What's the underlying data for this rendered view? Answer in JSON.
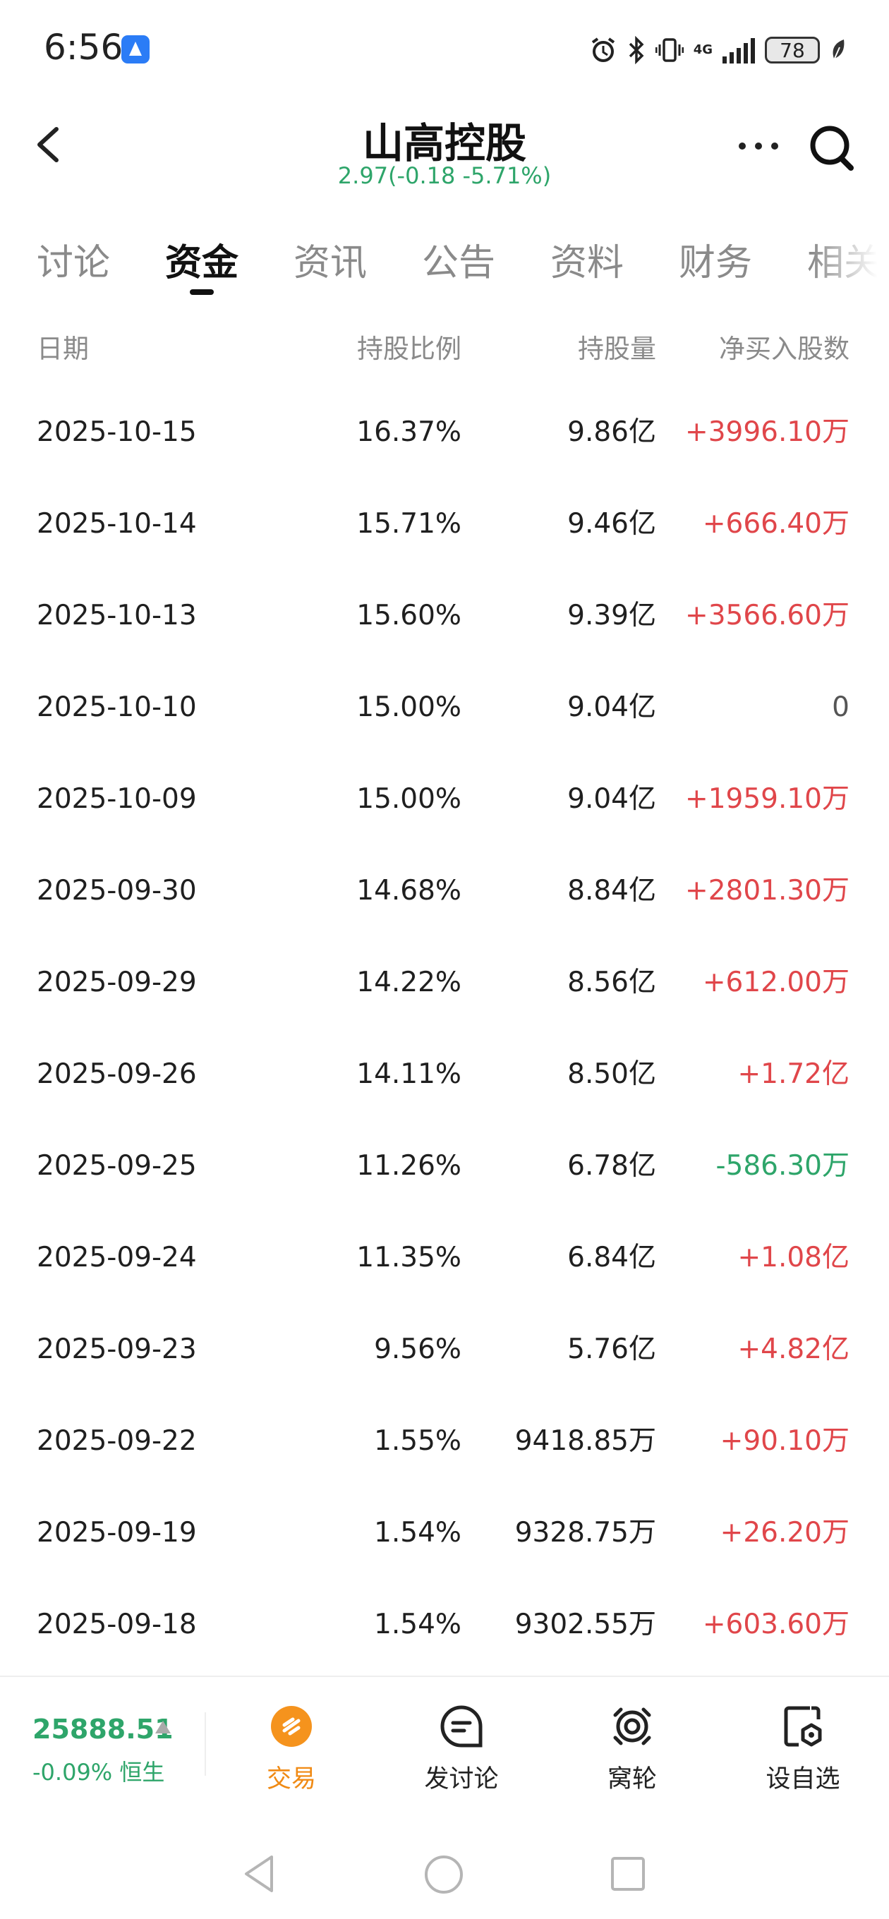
{
  "status_bar": {
    "time": "6:56",
    "network": "4G",
    "battery": "78",
    "icons": [
      "app-notification-icon",
      "alarm-icon",
      "bluetooth-icon",
      "vibrate-icon",
      "signal-icon",
      "battery-icon",
      "leaf-icon"
    ]
  },
  "header": {
    "title": "山高控股",
    "quote": "2.97(-0.18 -5.71%)",
    "quote_color": "#2ea56a"
  },
  "tabs": [
    {
      "label": "讨论",
      "active": false
    },
    {
      "label": "资金",
      "active": true
    },
    {
      "label": "资讯",
      "active": false
    },
    {
      "label": "公告",
      "active": false
    },
    {
      "label": "资料",
      "active": false
    },
    {
      "label": "财务",
      "active": false
    },
    {
      "label": "相关",
      "active": false
    }
  ],
  "table": {
    "headers": [
      "日期",
      "持股比例",
      "持股量",
      "净买入股数"
    ],
    "rows": [
      {
        "date": "2025-10-15",
        "ratio": "16.37%",
        "shares": "9.86亿",
        "net": "+3996.10万",
        "dir": "pos"
      },
      {
        "date": "2025-10-14",
        "ratio": "15.71%",
        "shares": "9.46亿",
        "net": "+666.40万",
        "dir": "pos"
      },
      {
        "date": "2025-10-13",
        "ratio": "15.60%",
        "shares": "9.39亿",
        "net": "+3566.60万",
        "dir": "pos"
      },
      {
        "date": "2025-10-10",
        "ratio": "15.00%",
        "shares": "9.04亿",
        "net": "0",
        "dir": "zero"
      },
      {
        "date": "2025-10-09",
        "ratio": "15.00%",
        "shares": "9.04亿",
        "net": "+1959.10万",
        "dir": "pos"
      },
      {
        "date": "2025-09-30",
        "ratio": "14.68%",
        "shares": "8.84亿",
        "net": "+2801.30万",
        "dir": "pos"
      },
      {
        "date": "2025-09-29",
        "ratio": "14.22%",
        "shares": "8.56亿",
        "net": "+612.00万",
        "dir": "pos"
      },
      {
        "date": "2025-09-26",
        "ratio": "14.11%",
        "shares": "8.50亿",
        "net": "+1.72亿",
        "dir": "pos"
      },
      {
        "date": "2025-09-25",
        "ratio": "11.26%",
        "shares": "6.78亿",
        "net": "-586.30万",
        "dir": "neg"
      },
      {
        "date": "2025-09-24",
        "ratio": "11.35%",
        "shares": "6.84亿",
        "net": "+1.08亿",
        "dir": "pos"
      },
      {
        "date": "2025-09-23",
        "ratio": "9.56%",
        "shares": "5.76亿",
        "net": "+4.82亿",
        "dir": "pos"
      },
      {
        "date": "2025-09-22",
        "ratio": "1.55%",
        "shares": "9418.85万",
        "net": "+90.10万",
        "dir": "pos"
      },
      {
        "date": "2025-09-19",
        "ratio": "1.54%",
        "shares": "9328.75万",
        "net": "+26.20万",
        "dir": "pos"
      },
      {
        "date": "2025-09-18",
        "ratio": "1.54%",
        "shares": "9302.55万",
        "net": "+603.60万",
        "dir": "pos"
      }
    ]
  },
  "bottom_bar": {
    "index_value": "25888.51",
    "index_change": "-0.09% 恒生",
    "nav": [
      {
        "label": "交易",
        "icon": "trade-icon"
      },
      {
        "label": "发讨论",
        "icon": "post-discussion-icon"
      },
      {
        "label": "窝轮",
        "icon": "warrant-icon"
      },
      {
        "label": "设自选",
        "icon": "add-watchlist-icon"
      }
    ]
  },
  "colors": {
    "up": "#e0464a",
    "down": "#2ea56a",
    "accent_orange": "#f08a14"
  }
}
